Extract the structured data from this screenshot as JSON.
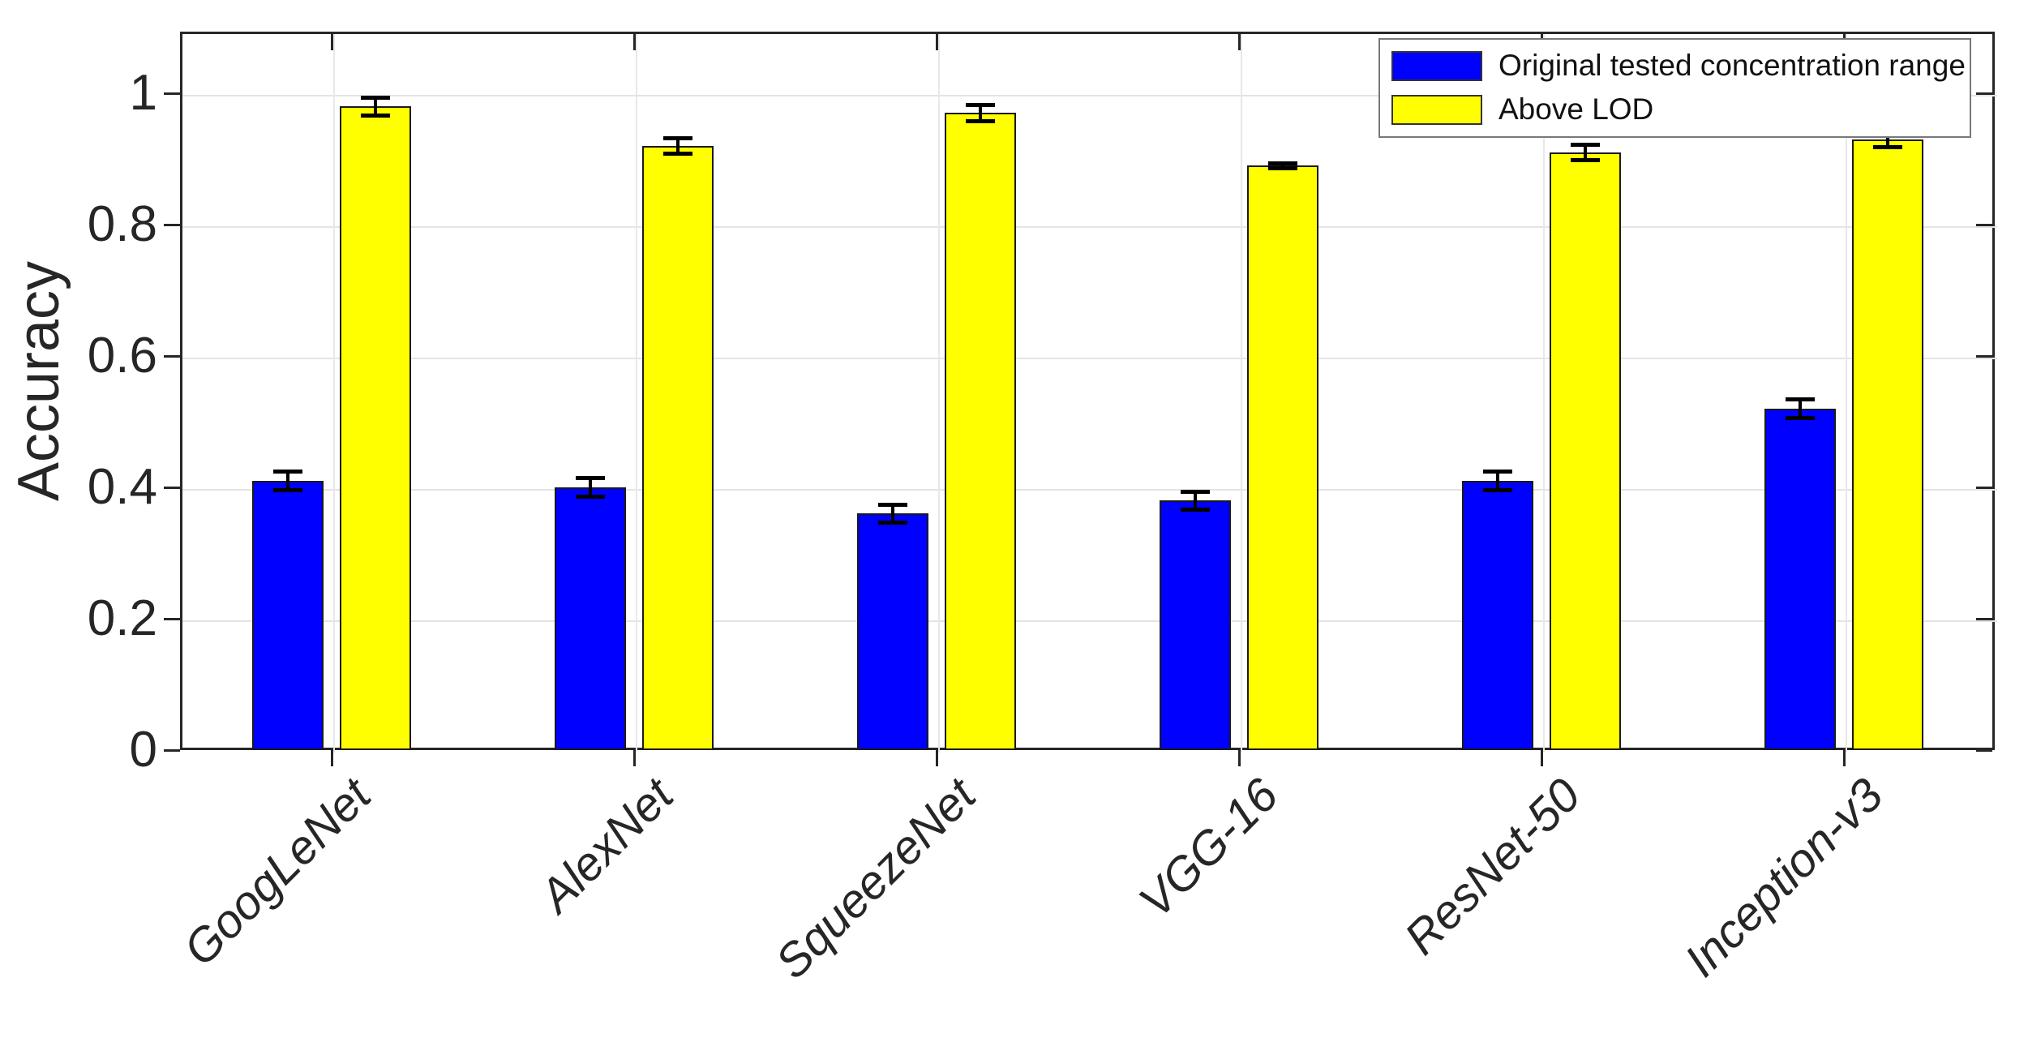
{
  "chart_data": {
    "type": "bar",
    "title": "",
    "xlabel": "",
    "ylabel": "Accuracy",
    "categories": [
      "GoogLeNet",
      "AlexNet",
      "SqueezeNet",
      "VGG-16",
      "ResNet-50",
      "Inception-v3"
    ],
    "series": [
      {
        "name": "Original tested concentration range",
        "color": "#0000ff",
        "values": [
          0.41,
          0.4,
          0.36,
          0.38,
          0.41,
          0.52
        ],
        "errors": [
          0.012,
          0.012,
          0.012,
          0.012,
          0.012,
          0.012
        ]
      },
      {
        "name": "Above LOD",
        "color": "#ffff00",
        "values": [
          0.98,
          0.92,
          0.97,
          0.89,
          0.91,
          0.93
        ],
        "errors": [
          0.012,
          0.01,
          0.01,
          0.002,
          0.01,
          0.01
        ]
      }
    ],
    "ylim": [
      0,
      1.094
    ],
    "yticks": [
      0,
      0.2,
      0.4,
      0.6,
      0.8,
      1
    ],
    "ytick_labels": [
      "0",
      "0.2",
      "0.4",
      "0.6",
      "0.8",
      "1"
    ],
    "grid": true,
    "legend_position": "top-right",
    "axis_color": "#262626",
    "grid_color": "#e4e4e4",
    "bar_edge_color": "#1a1a1a",
    "error_bar_color": "#000000"
  }
}
